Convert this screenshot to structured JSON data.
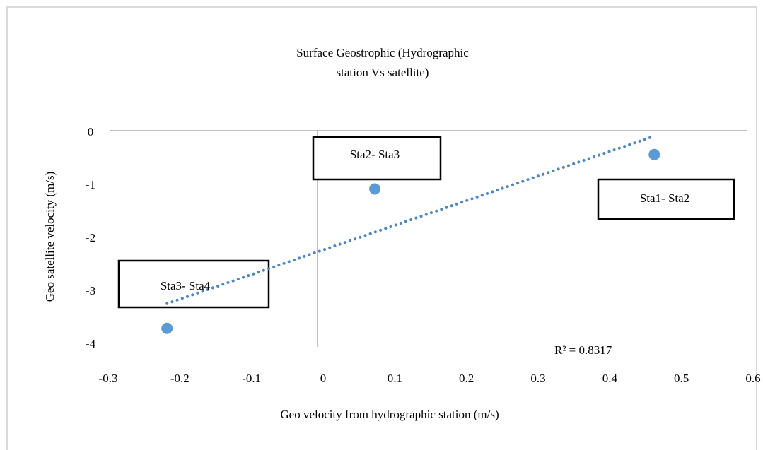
{
  "chart_data": {
    "type": "scatter",
    "title": "Surface Geostrophic (Hydrographic",
    "subtitle": "station Vs satellite)",
    "x_label": "Geo velocity from hydrographic station (m/s)",
    "y_label": "Geo satellite velocity (m/s)",
    "series": [
      {
        "name": "Geo satellite velocity",
        "color": "#5b9bd5",
        "x": [
          0.47,
          0.08,
          -0.21
        ],
        "values": [
          -0.45,
          -1.1,
          -3.73
        ]
      }
    ],
    "trendline": {
      "type": "linear",
      "label": "R² = 0.8317",
      "color": "#4a86c5"
    },
    "annotations": [
      "Sta1- Sta2",
      "Sta2- Sta3",
      "Sta3- Sta4"
    ],
    "xlim": [
      -0.3,
      0.6
    ],
    "xticks": [
      -0.3,
      -0.2,
      -0.1,
      0,
      0.1,
      0.2,
      0.3,
      0.4,
      0.5,
      0.6
    ],
    "ylim": [
      -4,
      0
    ],
    "yticks": [
      0,
      -1,
      -2,
      -3,
      -4
    ]
  }
}
